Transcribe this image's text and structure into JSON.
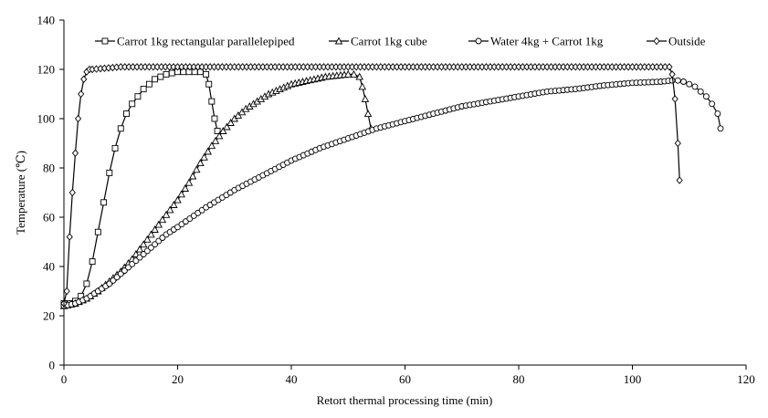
{
  "chart_data": {
    "type": "line",
    "title": "",
    "xlabel": "Retort thermal processing time (min)",
    "ylabel": "Temperature (℃)",
    "xlim": [
      0,
      120
    ],
    "ylim": [
      0,
      140
    ],
    "xticks": [
      0,
      20,
      40,
      60,
      80,
      100,
      120
    ],
    "yticks": [
      0,
      20,
      40,
      60,
      80,
      100,
      120,
      140
    ],
    "grid": false,
    "legend": "top",
    "series": [
      {
        "name": "Carrot 1kg rectangular parallelepiped",
        "marker": "square",
        "points": [
          [
            0,
            25
          ],
          [
            1,
            25
          ],
          [
            2,
            26
          ],
          [
            3,
            28
          ],
          [
            4,
            33
          ],
          [
            5,
            42
          ],
          [
            6,
            54
          ],
          [
            7,
            66
          ],
          [
            8,
            78
          ],
          [
            9,
            88
          ],
          [
            10,
            96
          ],
          [
            11,
            102
          ],
          [
            12,
            106
          ],
          [
            13,
            109
          ],
          [
            14,
            112
          ],
          [
            15,
            114
          ],
          [
            16,
            116
          ],
          [
            17,
            117
          ],
          [
            18,
            118
          ],
          [
            19,
            118.5
          ],
          [
            20,
            119
          ],
          [
            21,
            119
          ],
          [
            22,
            119
          ],
          [
            23,
            119
          ],
          [
            24,
            119
          ],
          [
            25,
            118
          ],
          [
            25.5,
            114
          ],
          [
            26,
            107
          ],
          [
            26.5,
            100
          ],
          [
            27,
            95
          ]
        ]
      },
      {
        "name": "Carrot 1kg cube",
        "marker": "triangle",
        "points": [
          [
            0,
            24
          ],
          [
            2,
            25
          ],
          [
            4,
            27
          ],
          [
            6,
            30
          ],
          [
            8,
            34
          ],
          [
            10,
            38
          ],
          [
            12,
            43
          ],
          [
            14,
            49
          ],
          [
            16,
            55
          ],
          [
            18,
            61
          ],
          [
            20,
            67
          ],
          [
            22,
            74
          ],
          [
            24,
            82
          ],
          [
            26,
            89
          ],
          [
            28,
            95
          ],
          [
            30,
            100
          ],
          [
            32,
            104
          ],
          [
            34,
            107
          ],
          [
            36,
            110
          ],
          [
            38,
            112
          ],
          [
            40,
            114
          ],
          [
            42,
            115
          ],
          [
            44,
            116
          ],
          [
            46,
            117
          ],
          [
            48,
            117.5
          ],
          [
            50,
            118
          ],
          [
            51,
            118
          ],
          [
            52,
            117
          ],
          [
            52.5,
            113
          ],
          [
            53,
            108
          ],
          [
            53.5,
            102
          ],
          [
            54,
            96
          ]
        ]
      },
      {
        "name": "Water 4kg + Carrot 1kg",
        "marker": "circle",
        "points": [
          [
            0,
            24
          ],
          [
            2,
            25
          ],
          [
            4,
            27
          ],
          [
            6,
            30
          ],
          [
            8,
            33
          ],
          [
            10,
            37
          ],
          [
            12,
            41
          ],
          [
            14,
            45
          ],
          [
            16,
            49
          ],
          [
            18,
            53
          ],
          [
            20,
            56
          ],
          [
            25,
            64
          ],
          [
            30,
            71
          ],
          [
            35,
            77
          ],
          [
            40,
            83
          ],
          [
            45,
            88
          ],
          [
            50,
            92
          ],
          [
            55,
            96
          ],
          [
            60,
            99
          ],
          [
            65,
            102
          ],
          [
            70,
            105
          ],
          [
            75,
            107
          ],
          [
            80,
            109
          ],
          [
            85,
            111
          ],
          [
            90,
            112
          ],
          [
            95,
            113.5
          ],
          [
            100,
            114.5
          ],
          [
            105,
            115
          ],
          [
            107,
            115.5
          ],
          [
            108,
            115.5
          ],
          [
            109,
            115
          ],
          [
            110,
            114
          ],
          [
            111,
            113
          ],
          [
            112,
            111
          ],
          [
            113,
            109
          ],
          [
            114,
            106
          ],
          [
            115,
            102
          ],
          [
            115.5,
            96
          ]
        ]
      },
      {
        "name": "Outside",
        "marker": "diamond",
        "points": [
          [
            0,
            25
          ],
          [
            0.5,
            30
          ],
          [
            1,
            52
          ],
          [
            1.5,
            70
          ],
          [
            2,
            86
          ],
          [
            2.5,
            100
          ],
          [
            3,
            110
          ],
          [
            3.5,
            116
          ],
          [
            4,
            119
          ],
          [
            4.5,
            120
          ],
          [
            5,
            120
          ],
          [
            10,
            121
          ],
          [
            20,
            121
          ],
          [
            30,
            121
          ],
          [
            40,
            121
          ],
          [
            50,
            121
          ],
          [
            60,
            121
          ],
          [
            70,
            121
          ],
          [
            80,
            121
          ],
          [
            90,
            121
          ],
          [
            100,
            121
          ],
          [
            105,
            121
          ],
          [
            106.5,
            121
          ],
          [
            107,
            118
          ],
          [
            107.5,
            108
          ],
          [
            108,
            90
          ],
          [
            108.3,
            75
          ]
        ]
      }
    ]
  }
}
